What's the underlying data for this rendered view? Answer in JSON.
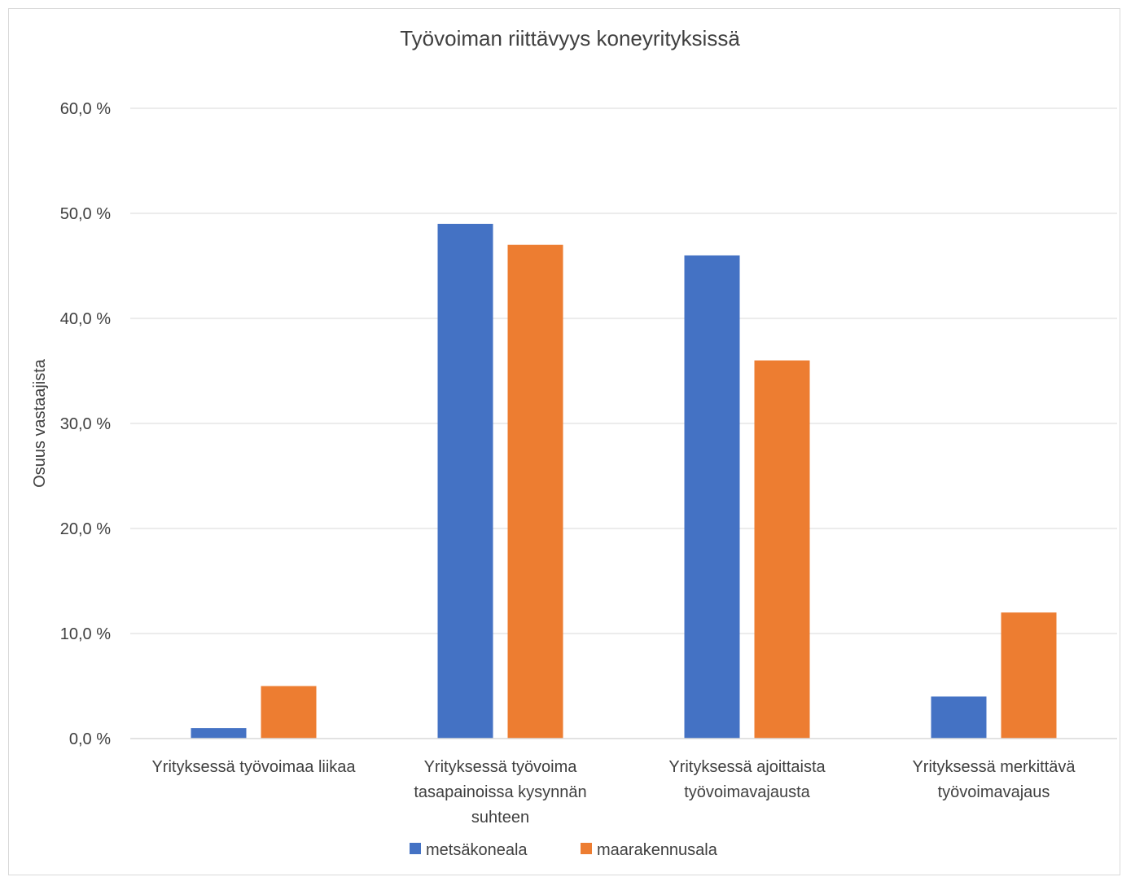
{
  "chart_data": {
    "type": "bar",
    "title": "Työvoiman riittävyys koneyrityksissä",
    "ylabel": "Osuus vastaajista",
    "xlabel": "",
    "ylim": [
      0,
      60
    ],
    "y_ticks": [
      0,
      10,
      20,
      30,
      40,
      50,
      60
    ],
    "y_tick_labels": [
      "0,0 %",
      "10,0 %",
      "20,0 %",
      "30,0 %",
      "40,0 %",
      "50,0 %",
      "60,0 %"
    ],
    "grid": true,
    "legend_position": "bottom",
    "categories": [
      [
        "Yrityksessä työvoimaa liikaa"
      ],
      [
        "Yrityksessä työvoima",
        "tasapainoissa kysynnän",
        "suhteen"
      ],
      [
        "Yrityksessä ajoittaista",
        "työvoimavajausta"
      ],
      [
        "Yrityksessä merkittävä",
        "työvoimavajaus"
      ]
    ],
    "series": [
      {
        "name": "metsäkoneala",
        "color": "#4472c4",
        "values": [
          1,
          49,
          46,
          4
        ]
      },
      {
        "name": "maarakennusala",
        "color": "#ed7d31",
        "values": [
          5,
          47,
          36,
          12
        ]
      }
    ]
  }
}
